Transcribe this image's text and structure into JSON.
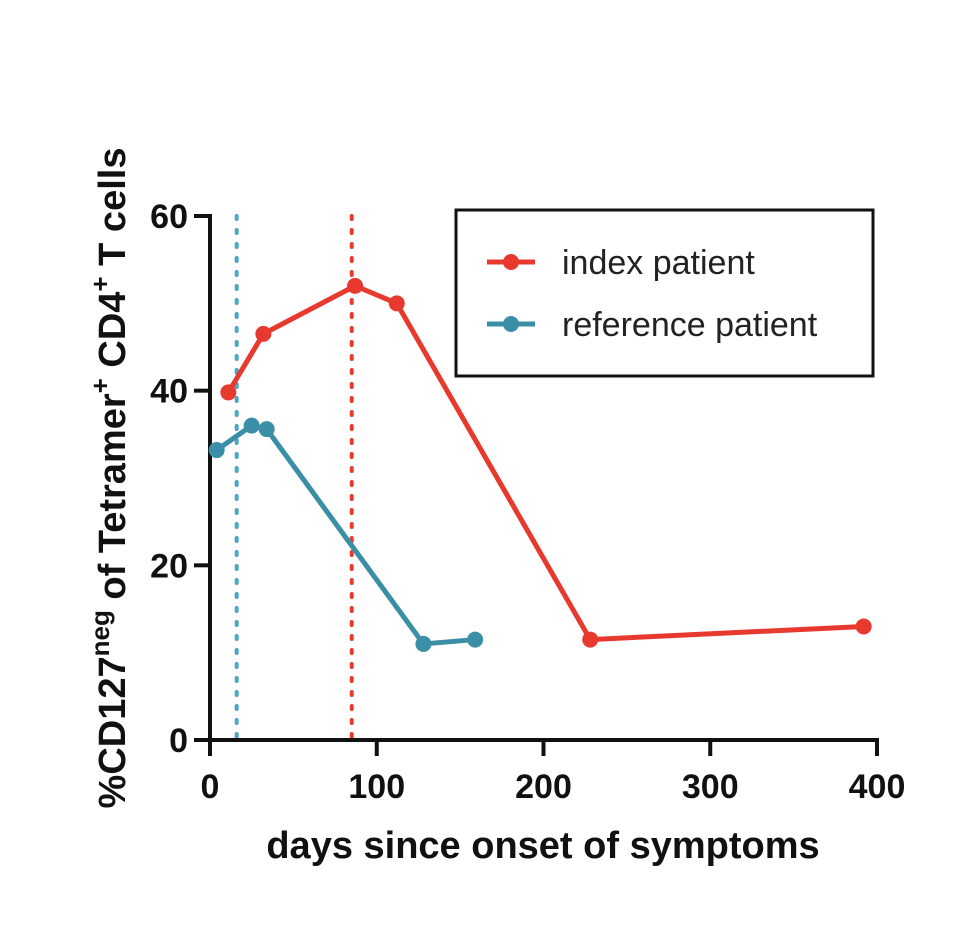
{
  "chart_data": {
    "type": "line",
    "xlabel": "days since onset of symptoms",
    "ylabel": {
      "base": "%CD127",
      "sup1": "neg",
      "middle": " of Tetramer",
      "sup2": "+",
      "tail1": " CD4",
      "sup3": "+",
      "tail2": " T cells"
    },
    "xlim": [
      0,
      400
    ],
    "ylim": [
      0,
      60
    ],
    "xticks": [
      0,
      100,
      200,
      300,
      400
    ],
    "yticks": [
      0,
      20,
      40,
      60
    ],
    "grid": false,
    "legend_position": "top-right",
    "series": [
      {
        "name": "index patient",
        "color": "#e8392f",
        "x": [
          11,
          32,
          87,
          112,
          228,
          392
        ],
        "y": [
          39.8,
          46.5,
          52.0,
          50.0,
          11.5,
          13.0
        ]
      },
      {
        "name": "reference patient",
        "color": "#3a8ea6",
        "x": [
          4,
          25,
          34,
          128,
          159
        ],
        "y": [
          33.2,
          36.0,
          35.6,
          11.0,
          11.5
        ]
      }
    ],
    "vlines": [
      {
        "x": 16,
        "color": "#4aa6c4",
        "style": "dotted"
      },
      {
        "x": 85,
        "color": "#e8392f",
        "style": "dotted"
      }
    ]
  }
}
